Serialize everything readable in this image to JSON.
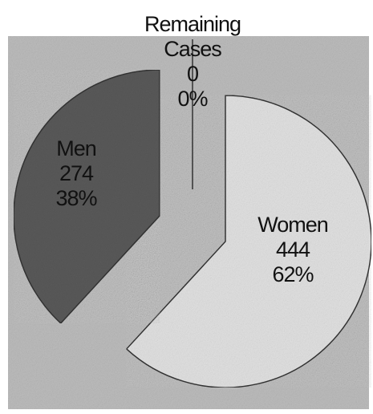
{
  "chart_data": {
    "type": "pie",
    "categories": [
      "Women",
      "Men",
      "Remaining Cases"
    ],
    "values": [
      444,
      274,
      0
    ],
    "percent_labels": [
      "62%",
      "38%",
      "0%"
    ],
    "colors": [
      "#e2e2e2",
      "#5a5a5a",
      "#d0d0d0"
    ]
  }
}
